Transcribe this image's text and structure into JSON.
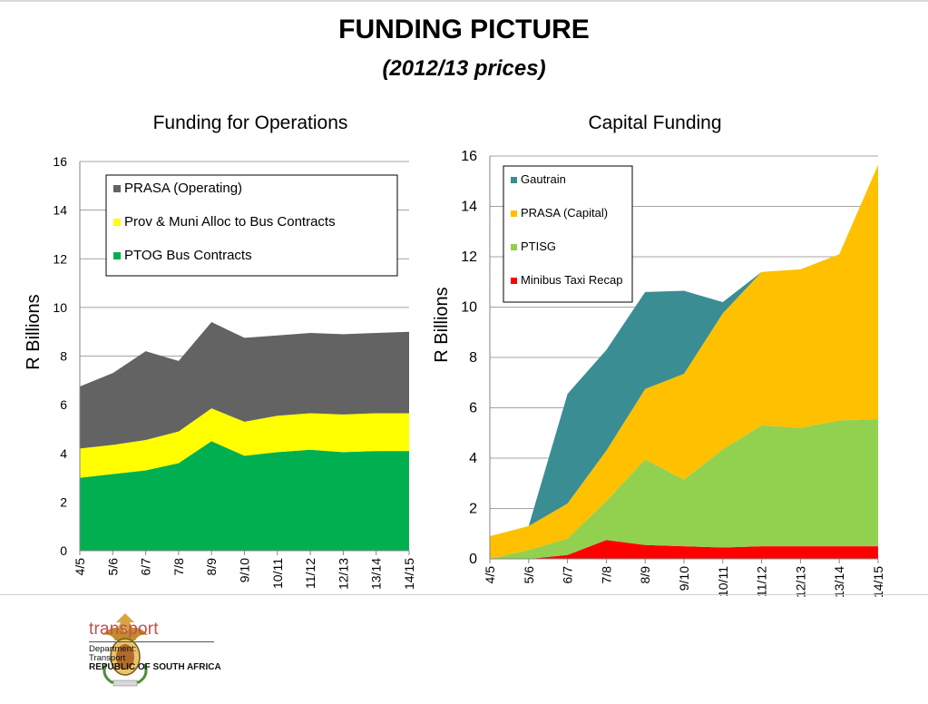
{
  "page": {
    "title": "FUNDING PICTURE",
    "subtitle": "(2012/13 prices)"
  },
  "colors": {
    "prasa_operating": "#636363",
    "prov_muni": "#ffff00",
    "ptog": "#00b050",
    "gautrain": "#3a8d93",
    "prasa_capital": "#ffc000",
    "ptisg": "#92d050",
    "minibus": "#ff0000"
  },
  "chart_data": [
    {
      "type": "area",
      "stacked": true,
      "title": "Funding for Operations",
      "ylabel": "R Billions",
      "xlabel": "",
      "ylim": [
        0,
        16
      ],
      "yticks": [
        0,
        2,
        4,
        6,
        8,
        10,
        12,
        14,
        16
      ],
      "categories": [
        "4/5",
        "5/6",
        "6/7",
        "7/8",
        "8/9",
        "9/10",
        "10/11",
        "11/12",
        "12/13",
        "13/14",
        "14/15"
      ],
      "grid": true,
      "legend_position": "top-right",
      "series": [
        {
          "name": "PTOG Bus Contracts",
          "color_key": "ptog",
          "values": [
            3.0,
            3.15,
            3.3,
            3.6,
            4.5,
            3.9,
            4.05,
            4.15,
            4.05,
            4.1,
            4.1
          ]
        },
        {
          "name": "Prov & Muni Alloc to Bus Contracts",
          "color_key": "prov_muni",
          "values": [
            1.2,
            1.2,
            1.25,
            1.3,
            1.35,
            1.4,
            1.5,
            1.5,
            1.55,
            1.55,
            1.55
          ]
        },
        {
          "name": "PRASA (Operating)",
          "color_key": "prasa_operating",
          "values": [
            2.55,
            2.95,
            3.65,
            2.9,
            3.55,
            3.45,
            3.3,
            3.3,
            3.3,
            3.3,
            3.35
          ]
        }
      ],
      "legend_order": [
        "PRASA (Operating)",
        "Prov & Muni Alloc to Bus Contracts",
        "PTOG Bus Contracts"
      ]
    },
    {
      "type": "area",
      "stacked": true,
      "title": "Capital Funding",
      "ylabel": "R Billions",
      "xlabel": "",
      "ylim": [
        0,
        16
      ],
      "yticks": [
        0,
        2,
        4,
        6,
        8,
        10,
        12,
        14,
        16
      ],
      "categories": [
        "4/5",
        "5/6",
        "6/7",
        "7/8",
        "8/9",
        "9/10",
        "10/11",
        "11/12",
        "12/13",
        "13/14",
        "14/15"
      ],
      "grid": true,
      "legend_position": "top-left",
      "series": [
        {
          "name": "Minibus Taxi Recap",
          "color_key": "minibus",
          "values": [
            0,
            0,
            0.15,
            0.75,
            0.55,
            0.5,
            0.45,
            0.5,
            0.5,
            0.5,
            0.5
          ]
        },
        {
          "name": "PTISG",
          "color_key": "ptisg",
          "values": [
            0,
            0.35,
            0.65,
            1.55,
            3.4,
            2.65,
            3.9,
            4.8,
            4.7,
            5.0,
            5.05
          ]
        },
        {
          "name": "PRASA (Capital)",
          "color_key": "prasa_capital",
          "values": [
            0.9,
            0.95,
            1.4,
            2.0,
            2.8,
            4.2,
            5.4,
            6.1,
            6.3,
            6.6,
            10.1
          ]
        },
        {
          "name": "Gautrain",
          "color_key": "gautrain",
          "values": [
            0,
            0,
            4.35,
            4.0,
            3.85,
            3.3,
            0.45,
            0,
            0,
            0,
            0
          ]
        }
      ],
      "legend_order": [
        "Gautrain",
        "PRASA (Capital)",
        "PTISG",
        "Minibus Taxi Recap"
      ]
    }
  ],
  "footer": {
    "brand": "transport",
    "dept_line1": "Department:",
    "dept_line2": "Transport",
    "country": "REPUBLIC OF SOUTH AFRICA"
  }
}
